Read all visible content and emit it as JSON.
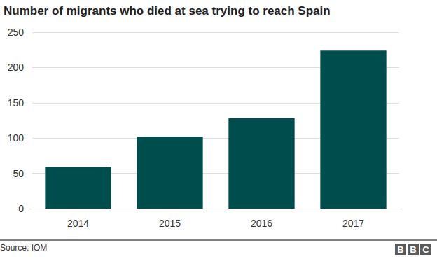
{
  "chart_data": {
    "type": "bar",
    "title": "Number of migrants who died at sea trying to reach Spain",
    "categories": [
      "2014",
      "2015",
      "2016",
      "2017"
    ],
    "values": [
      59,
      102,
      128,
      224
    ],
    "color": "#004d4d",
    "ylim": [
      0,
      250
    ],
    "yticks": [
      0,
      50,
      100,
      150,
      200,
      250
    ],
    "grid": true,
    "source": "Source: IOM",
    "logo": "BBC"
  }
}
